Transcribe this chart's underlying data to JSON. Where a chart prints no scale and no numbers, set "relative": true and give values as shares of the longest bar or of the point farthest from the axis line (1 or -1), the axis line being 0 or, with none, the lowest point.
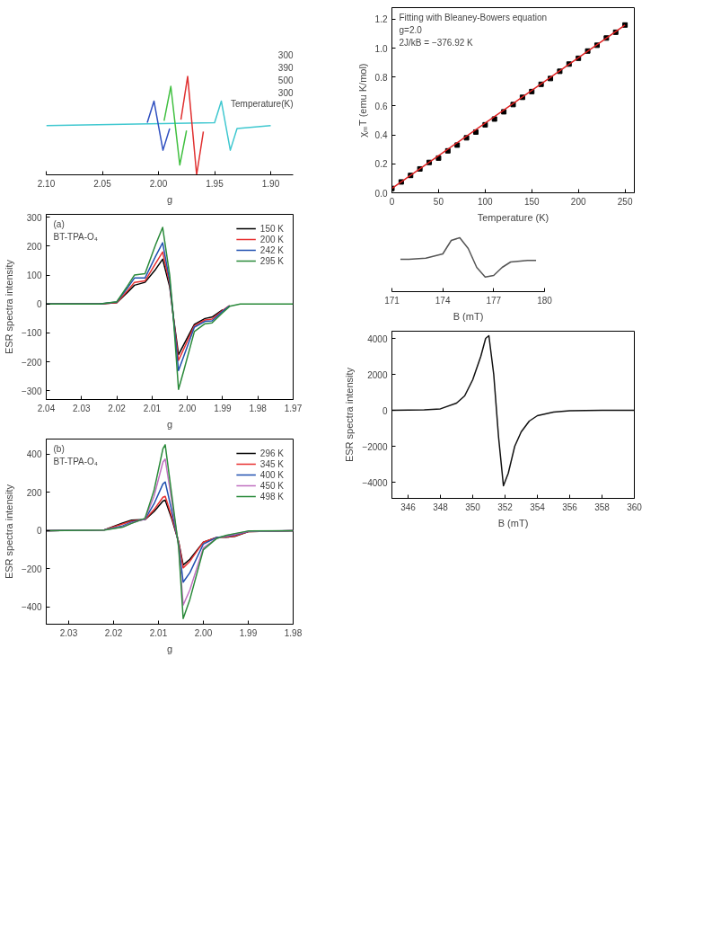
{
  "chart_data": [
    {
      "type": "line",
      "relative": true,
      "xlabel": "g",
      "xlim": [
        2.1,
        1.88
      ],
      "xticks": [
        {
          "value": 2.1,
          "label": "2.10"
        },
        2.05,
        {
          "value": 2.0,
          "label": "2.00"
        },
        1.95,
        {
          "value": 1.9,
          "label": "1.90"
        }
      ],
      "annotations": [
        "300",
        "390",
        "500",
        "300",
        "Temperature(K)"
      ],
      "series": [
        {
          "color": "#40c8d0",
          "x": [
            2.1,
            1.95,
            1.944,
            1.94,
            1.936,
            1.93,
            1.9
          ],
          "values": [
            0.5,
            0.53,
            0.75,
            0.5,
            0.25,
            0.47,
            0.5
          ]
        },
        {
          "color": "#3050c0",
          "x": [
            2.01,
            2.004,
            2.0,
            1.996,
            1.99
          ],
          "values": [
            0.53,
            0.75,
            0.5,
            0.25,
            0.47
          ]
        },
        {
          "color": "#40c040",
          "x": [
            1.995,
            1.989,
            1.985,
            1.981,
            1.975
          ],
          "values": [
            0.55,
            0.9,
            0.5,
            0.1,
            0.45
          ]
        },
        {
          "color": "#e03030",
          "x": [
            1.98,
            1.974,
            1.97,
            1.966,
            1.96
          ],
          "values": [
            0.56,
            1.0,
            0.5,
            0.0,
            0.44
          ]
        }
      ]
    },
    {
      "type": "scatter",
      "xlabel": "Temperature (K)",
      "ylabel": "χₘT (emu K/mol)",
      "xlim": [
        0,
        260
      ],
      "ylim": [
        0,
        1.28
      ],
      "xticks": [
        0,
        50,
        100,
        150,
        200,
        250
      ],
      "yticks": [
        {
          "value": 0,
          "label": "0.0"
        },
        0.2,
        0.4,
        0.6,
        0.8,
        {
          "value": 1,
          "label": "1.0"
        },
        1.2
      ],
      "annotations": [
        "Fitting with Bleaney-Bowers equation",
        "g=2.0",
        "2J/kB = −376.92 K"
      ],
      "x": [
        0,
        10,
        20,
        30,
        40,
        50,
        60,
        70,
        80,
        90,
        100,
        110,
        120,
        130,
        140,
        150,
        160,
        170,
        180,
        190,
        200,
        210,
        220,
        230,
        240,
        250
      ],
      "series": [
        {
          "type": "scatter",
          "marker": "square",
          "color": "#000000",
          "values": [
            0.03,
            0.075,
            0.12,
            0.165,
            0.21,
            0.24,
            0.29,
            0.33,
            0.38,
            0.42,
            0.47,
            0.51,
            0.56,
            0.61,
            0.66,
            0.7,
            0.75,
            0.79,
            0.84,
            0.89,
            0.93,
            0.98,
            1.02,
            1.07,
            1.11,
            1.16
          ]
        },
        {
          "type": "line",
          "color": "#e02020",
          "x": [
            0,
            250
          ],
          "values": [
            0.03,
            1.16
          ]
        }
      ]
    },
    {
      "type": "line",
      "xlabel": "g",
      "ylabel": "ESR spectra intensity",
      "xlim": [
        2.04,
        1.97
      ],
      "ylim": [
        -330,
        310
      ],
      "xticks": [
        2.04,
        2.03,
        2.02,
        2.01,
        {
          "value": 2.0,
          "label": "2.00"
        },
        1.99,
        1.98,
        1.97
      ],
      "yticks": [
        {
          "value": -300,
          "label": "−300"
        },
        {
          "value": -200,
          "label": "−200"
        },
        {
          "value": -100,
          "label": "−100"
        },
        0,
        100,
        200,
        300
      ],
      "annotations": [
        "(a)",
        "BT-TPA-O₄"
      ],
      "legend": "top right",
      "x": [
        2.04,
        2.025,
        2.02,
        2.017,
        2.015,
        2.012,
        2.009,
        2.007,
        2.005,
        2.004,
        2.0025,
        2.001,
        1.998,
        1.995,
        1.993,
        1.99,
        1.988,
        1.985,
        1.97
      ],
      "series": [
        {
          "name": "150 K",
          "color": "#000000",
          "values": [
            0,
            0,
            5,
            40,
            65,
            75,
            120,
            155,
            60,
            -40,
            -175,
            -140,
            -70,
            -50,
            -45,
            -20,
            null,
            null,
            null
          ]
        },
        {
          "name": "200 K",
          "color": "#e83030",
          "values": [
            0,
            0,
            5,
            45,
            75,
            80,
            140,
            180,
            70,
            -40,
            -195,
            -155,
            -75,
            -55,
            -52,
            -22,
            -5,
            null,
            null
          ]
        },
        {
          "name": "242 K",
          "color": "#2050b0",
          "values": [
            0,
            0,
            7,
            55,
            90,
            90,
            165,
            212,
            80,
            -40,
            -230,
            -180,
            -80,
            -60,
            -58,
            -25,
            -6,
            null,
            null
          ]
        },
        {
          "name": "295 K",
          "color": "#2a8a3a",
          "values": [
            0,
            0,
            8,
            62,
            100,
            105,
            205,
            265,
            100,
            -40,
            -295,
            -230,
            -95,
            -68,
            -65,
            -30,
            -8,
            0,
            0
          ]
        }
      ]
    },
    {
      "type": "line",
      "xlabel": "B (mT)",
      "ylabel": "ESR spectra intensity",
      "xlim": [
        345,
        360
      ],
      "ylim": [
        -4900,
        4400
      ],
      "xticks": [
        346,
        348,
        350,
        352,
        354,
        356,
        358,
        360
      ],
      "yticks": [
        {
          "value": -4000,
          "label": "−4000"
        },
        {
          "value": -2000,
          "label": "−2000"
        },
        0,
        2000,
        4000
      ],
      "x": [
        345,
        347,
        348,
        349,
        349.5,
        350,
        350.5,
        350.8,
        351,
        351.3,
        351.6,
        351.9,
        352.2,
        352.6,
        353,
        353.5,
        354,
        355,
        356,
        358,
        360
      ],
      "series": [
        {
          "color": "#111111",
          "values": [
            0,
            20,
            80,
            400,
            800,
            1700,
            3000,
            4000,
            4150,
            2000,
            -1500,
            -4200,
            -3500,
            -2000,
            -1200,
            -600,
            -300,
            -100,
            -30,
            0,
            0
          ]
        }
      ]
    },
    {
      "type": "line",
      "relative": true,
      "xlabel": "B (mT)",
      "xlim": [
        171,
        180
      ],
      "xticks": [
        171,
        174,
        177,
        180
      ],
      "x": [
        171.5,
        172,
        173,
        174,
        174.5,
        175,
        175.5,
        176,
        176.5,
        177,
        177.5,
        178,
        179,
        179.5
      ],
      "series": [
        {
          "color": "#555555",
          "values": [
            0.6,
            0.6,
            0.62,
            0.7,
            0.95,
            1.0,
            0.8,
            0.45,
            0.27,
            0.3,
            0.45,
            0.55,
            0.58,
            0.58
          ]
        }
      ]
    },
    {
      "type": "line",
      "xlabel": "g",
      "ylabel": "ESR spectra intensity",
      "xlim": [
        2.035,
        1.98
      ],
      "ylim": [
        -490,
        480
      ],
      "xticks": [
        2.03,
        2.02,
        2.01,
        {
          "value": 2.0,
          "label": "2.00"
        },
        1.99,
        1.98
      ],
      "yticks": [
        {
          "value": -400,
          "label": "−400"
        },
        {
          "value": -200,
          "label": "−200"
        },
        0,
        200,
        400
      ],
      "annotations": [
        "(b)",
        "BT-TPA-O₄"
      ],
      "legend": "top right",
      "x": [
        2.035,
        2.022,
        2.018,
        2.016,
        2.013,
        2.011,
        2.009,
        2.0085,
        2.007,
        2.0055,
        2.0045,
        2.003,
        2.0,
        1.997,
        1.995,
        1.993,
        1.99,
        1.98
      ],
      "series": [
        {
          "name": "296 K",
          "color": "#000000",
          "values": [
            0,
            5,
            40,
            55,
            58,
            100,
            155,
            160,
            60,
            -60,
            -180,
            -150,
            -60,
            -35,
            -35,
            -30,
            -5,
            0
          ]
        },
        {
          "name": "345 K",
          "color": "#e83030",
          "values": [
            0,
            5,
            35,
            50,
            58,
            110,
            175,
            180,
            70,
            -60,
            -195,
            -160,
            -60,
            -35,
            -33,
            -28,
            -5,
            0
          ]
        },
        {
          "name": "400 K",
          "color": "#2050b0",
          "values": [
            0,
            5,
            25,
            45,
            60,
            140,
            245,
            255,
            100,
            -70,
            -270,
            -220,
            -70,
            -35,
            -30,
            -22,
            -4,
            0
          ]
        },
        {
          "name": "450 K",
          "color": "#c070c0",
          "values": [
            0,
            4,
            20,
            40,
            62,
            180,
            360,
            375,
            150,
            -80,
            -390,
            -310,
            -90,
            -40,
            -28,
            -18,
            -3,
            0
          ]
        },
        {
          "name": "498 K",
          "color": "#2a8a3a",
          "values": [
            0,
            3,
            18,
            38,
            65,
            210,
            430,
            450,
            180,
            -90,
            -460,
            -360,
            -100,
            -40,
            -25,
            -15,
            -2,
            0
          ]
        }
      ]
    }
  ]
}
